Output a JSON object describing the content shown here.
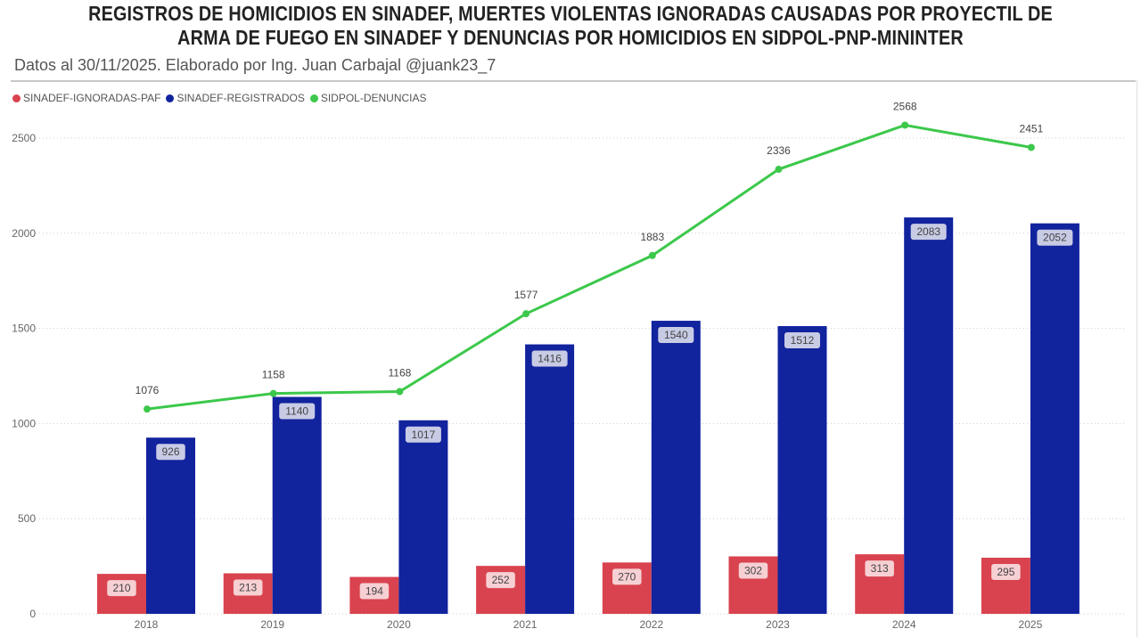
{
  "chart_data": {
    "type": "bar",
    "title": "REGISTROS DE HOMICIDIOS EN SINADEF, MUERTES VIOLENTAS IGNORADAS CAUSADAS POR PROYECTIL DE ARMA DE FUEGO EN SINADEF Y DENUNCIAS POR HOMICIDIOS EN SIDPOL-PNP-MININTER",
    "subtitle": "Datos al 30/11/2025. Elaborado por Ing. Juan Carbajal @juank23_7",
    "categories": [
      "2018",
      "2019",
      "2020",
      "2021",
      "2022",
      "2023",
      "2024",
      "2025"
    ],
    "series": [
      {
        "name": "SINADEF-IGNORADAS-PAF",
        "type": "bar",
        "color": "#d9434f",
        "values": [
          210,
          213,
          194,
          252,
          270,
          302,
          313,
          295
        ]
      },
      {
        "name": "SINADEF-REGISTRADOS",
        "type": "bar",
        "color": "#12239e",
        "values": [
          926,
          1140,
          1017,
          1416,
          1540,
          1512,
          2083,
          2052
        ]
      },
      {
        "name": "SIDPOL-DENUNCIAS",
        "type": "line",
        "color": "#3cc84b",
        "values": [
          1076,
          1158,
          1168,
          1577,
          1883,
          2336,
          2568,
          2451
        ]
      }
    ],
    "yticks": [
      0,
      500,
      1000,
      1500,
      2000,
      2500
    ],
    "ylim": [
      0,
      2500
    ],
    "grid": true,
    "legend": "top-left",
    "data_labels": true
  }
}
